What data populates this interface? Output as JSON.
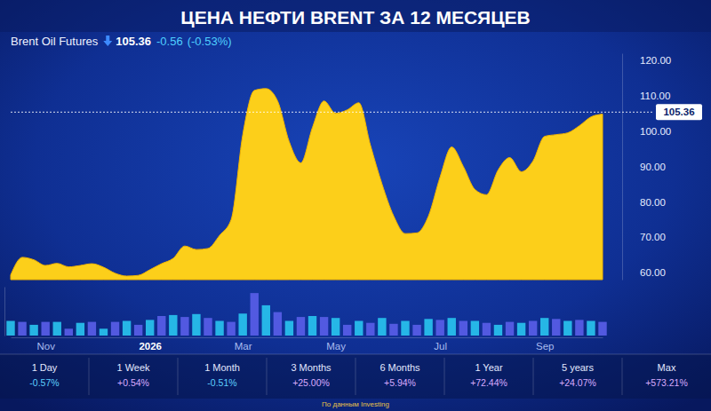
{
  "chart_data": {
    "type": "area",
    "title": "ЦЕНА НЕФТИ BRENT ЗА 12 МЕСЯЦЕВ",
    "categories": [
      null,
      null,
      null,
      "Nov",
      null,
      null,
      null,
      null,
      null,
      null,
      null,
      null,
      "2026",
      null,
      null,
      null,
      null,
      null,
      null,
      null,
      "Mar",
      null,
      null,
      null,
      null,
      null,
      null,
      null,
      "May",
      null,
      null,
      null,
      null,
      null,
      null,
      null,
      null,
      "Jul",
      null,
      null,
      null,
      null,
      null,
      null,
      null,
      null,
      "Sep",
      null,
      null,
      null,
      null,
      null
    ],
    "series": [
      {
        "name": "Brent Oil Futures",
        "type": "area",
        "color": "#fccf1a",
        "values": [
          59.3,
          64.3,
          63.6,
          62.0,
          62.6,
          61.6,
          62.0,
          62.5,
          61.5,
          59.8,
          59.0,
          59.2,
          60.8,
          62.5,
          64.0,
          67.5,
          66.5,
          66.8,
          70.5,
          75.0,
          99.0,
          111.5,
          112.0,
          108.5,
          97.0,
          91.0,
          101.0,
          108.5,
          105.0,
          106.0,
          108.0,
          96.0,
          85.0,
          76.0,
          71.0,
          71.2,
          76.0,
          87.0,
          95.5,
          90.0,
          83.5,
          82.0,
          89.0,
          92.5,
          88.5,
          91.5,
          98.5,
          99.0,
          99.5,
          101.5,
          104.0,
          104.8
        ]
      },
      {
        "type": "bar",
        "axis": "y2",
        "colors": [
          "#29c5f0",
          "#5a5ee9",
          "#29c5f0",
          "#5a5ee9",
          "#29c5f0",
          "#5a5ee9",
          "#29c5f0",
          "#5a5ee9",
          "#29c5f0",
          "#5a5ee9",
          "#29c5f0",
          "#5a5ee9",
          "#29c5f0",
          "#5a5ee9",
          "#29c5f0",
          "#5a5ee9",
          "#29c5f0",
          "#5a5ee9",
          "#29c5f0",
          "#5a5ee9",
          "#29c5f0",
          "#5a5ee9",
          "#29c5f0",
          "#5a5ee9",
          "#29c5f0",
          "#5a5ee9",
          "#29c5f0",
          "#5a5ee9",
          "#29c5f0",
          "#5a5ee9",
          "#29c5f0",
          "#5a5ee9",
          "#29c5f0",
          "#5a5ee9",
          "#29c5f0",
          "#5a5ee9",
          "#29c5f0",
          "#5a5ee9",
          "#29c5f0",
          "#5a5ee9",
          "#29c5f0",
          "#5a5ee9",
          "#29c5f0",
          "#5a5ee9",
          "#29c5f0",
          "#5a5ee9",
          "#29c5f0",
          "#5a5ee9",
          "#29c5f0",
          "#5a5ee9",
          "#29c5f0",
          "#5a5ee9"
        ],
        "values": [
          30,
          28,
          22,
          28,
          28,
          14,
          26,
          28,
          14,
          28,
          30,
          22,
          32,
          40,
          42,
          38,
          44,
          36,
          30,
          28,
          45,
          87,
          62,
          48,
          30,
          38,
          40,
          38,
          36,
          22,
          30,
          26,
          36,
          24,
          30,
          22,
          34,
          32,
          36,
          30,
          30,
          26,
          22,
          28,
          26,
          30,
          36,
          34,
          30,
          32,
          30,
          28
        ]
      }
    ],
    "ylim": [
      58,
      122
    ],
    "yticks": [
      {
        "value": 60,
        "label": "60.00"
      },
      {
        "value": 70,
        "label": "70.00"
      },
      {
        "value": 80,
        "label": "80.00"
      },
      {
        "value": 90,
        "label": "90.00"
      },
      {
        "value": 100,
        "label": "100.00"
      },
      {
        "value": 110,
        "label": "110.00"
      },
      {
        "value": 120,
        "label": "120.00"
      }
    ],
    "y2lim": [
      0,
      100
    ],
    "grid": false,
    "annotations": [
      {
        "value": 105.36,
        "label": "105.36"
      }
    ]
  },
  "header": {
    "price": "105.36",
    "change": "-0.56",
    "change_percent": "(-0.53%)"
  },
  "performance": [
    {
      "period": "1 Day",
      "change": "-0.57%"
    },
    {
      "period": "1 Week",
      "change": "+0.54%"
    },
    {
      "period": "1 Month",
      "change": "-0.51%"
    },
    {
      "period": "3 Months",
      "change": "+25.00%"
    },
    {
      "period": "6 Months",
      "change": "+5.94%"
    },
    {
      "period": "1 Year",
      "change": "+72.44%"
    },
    {
      "period": "5 years",
      "change": "+24.07%"
    },
    {
      "period": "Max",
      "change": "+573.21%"
    }
  ],
  "source": "По данным Investing"
}
